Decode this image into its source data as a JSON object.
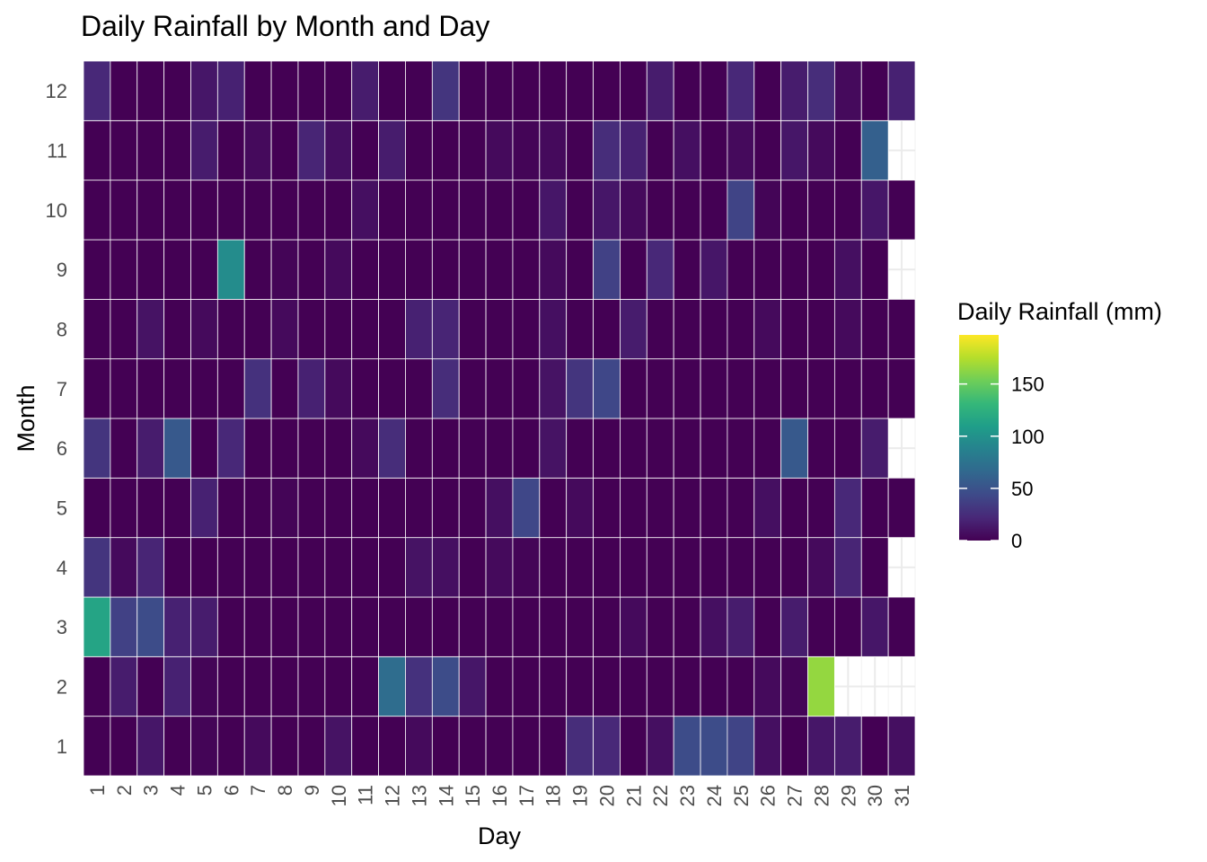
{
  "chart_data": {
    "type": "heatmap",
    "title": "Daily Rainfall by Month and Day",
    "xlabel": "Day",
    "ylabel": "Month",
    "x": [
      "1",
      "2",
      "3",
      "4",
      "5",
      "6",
      "7",
      "8",
      "9",
      "10",
      "11",
      "12",
      "13",
      "14",
      "15",
      "16",
      "17",
      "18",
      "19",
      "20",
      "21",
      "22",
      "23",
      "24",
      "25",
      "26",
      "27",
      "28",
      "29",
      "30",
      "31"
    ],
    "y": [
      "1",
      "2",
      "3",
      "4",
      "5",
      "6",
      "7",
      "8",
      "9",
      "10",
      "11",
      "12"
    ],
    "days_in_month": [
      31,
      28,
      31,
      30,
      31,
      30,
      31,
      31,
      30,
      31,
      30,
      31
    ],
    "values": [
      [
        0,
        0,
        12,
        0,
        2,
        0,
        5,
        0,
        0,
        10,
        0,
        0,
        5,
        0,
        0,
        0,
        0,
        0,
        25,
        22,
        0,
        8,
        45,
        45,
        40,
        8,
        0,
        12,
        15,
        0,
        8
      ],
      [
        0,
        15,
        0,
        18,
        2,
        0,
        0,
        0,
        0,
        0,
        0,
        70,
        28,
        45,
        12,
        0,
        0,
        0,
        0,
        0,
        0,
        0,
        0,
        0,
        0,
        5,
        2,
        165
      ],
      [
        115,
        38,
        45,
        18,
        15,
        0,
        0,
        0,
        0,
        0,
        0,
        0,
        0,
        0,
        0,
        0,
        0,
        0,
        0,
        0,
        5,
        0,
        0,
        8,
        15,
        0,
        15,
        0,
        0,
        12,
        0
      ],
      [
        30,
        5,
        20,
        0,
        0,
        0,
        0,
        0,
        0,
        0,
        0,
        0,
        10,
        8,
        0,
        5,
        2,
        0,
        0,
        0,
        0,
        0,
        0,
        0,
        0,
        0,
        0,
        5,
        20,
        0
      ],
      [
        0,
        0,
        0,
        0,
        18,
        0,
        0,
        2,
        0,
        0,
        0,
        0,
        0,
        0,
        0,
        8,
        42,
        0,
        5,
        0,
        0,
        0,
        0,
        0,
        0,
        8,
        0,
        0,
        22,
        0,
        0
      ],
      [
        30,
        0,
        15,
        55,
        0,
        22,
        0,
        0,
        0,
        0,
        5,
        25,
        0,
        0,
        0,
        0,
        0,
        10,
        0,
        0,
        0,
        0,
        0,
        0,
        0,
        0,
        55,
        0,
        0,
        15
      ],
      [
        0,
        0,
        0,
        0,
        0,
        0,
        28,
        0,
        18,
        5,
        0,
        0,
        0,
        25,
        0,
        0,
        0,
        10,
        30,
        42,
        0,
        0,
        0,
        0,
        0,
        0,
        0,
        0,
        0,
        0,
        0
      ],
      [
        0,
        0,
        10,
        0,
        5,
        0,
        0,
        5,
        0,
        0,
        0,
        0,
        18,
        20,
        0,
        0,
        0,
        8,
        0,
        0,
        15,
        0,
        0,
        0,
        0,
        5,
        0,
        0,
        5,
        0,
        0
      ],
      [
        0,
        0,
        0,
        0,
        0,
        95,
        0,
        2,
        0,
        5,
        0,
        0,
        0,
        0,
        0,
        0,
        0,
        5,
        0,
        38,
        0,
        22,
        0,
        12,
        0,
        0,
        0,
        0,
        8,
        0
      ],
      [
        0,
        0,
        0,
        0,
        0,
        0,
        0,
        0,
        0,
        0,
        8,
        0,
        0,
        0,
        0,
        0,
        0,
        12,
        0,
        12,
        5,
        0,
        0,
        0,
        40,
        2,
        0,
        0,
        0,
        12,
        0
      ],
      [
        0,
        0,
        0,
        0,
        15,
        0,
        5,
        0,
        20,
        8,
        0,
        15,
        0,
        0,
        0,
        5,
        2,
        5,
        0,
        25,
        18,
        0,
        8,
        0,
        5,
        0,
        12,
        5,
        0,
        60
      ],
      [
        22,
        0,
        0,
        0,
        12,
        18,
        0,
        0,
        0,
        0,
        15,
        0,
        0,
        30,
        0,
        0,
        0,
        0,
        0,
        0,
        0,
        15,
        0,
        0,
        22,
        0,
        15,
        25,
        5,
        0,
        18
      ]
    ],
    "color_scale": {
      "name": "viridis",
      "min": 0,
      "max": 197,
      "stops": [
        "#440154",
        "#482878",
        "#3e4a89",
        "#31688e",
        "#26828e",
        "#1f9e89",
        "#35b779",
        "#6ece58",
        "#b5de2b",
        "#fde725"
      ]
    },
    "grid": true,
    "legend": {
      "title": "Daily Rainfall (mm)",
      "position": "right",
      "ticks": [
        0,
        50,
        100,
        150
      ]
    }
  }
}
